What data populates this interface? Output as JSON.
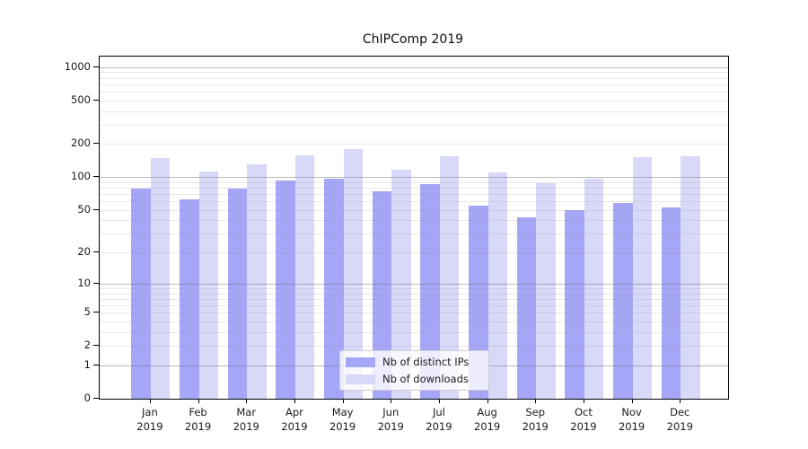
{
  "title": "ChIPComp 2019",
  "chart_data": {
    "type": "bar",
    "title": "ChIPComp 2019",
    "categories": [
      "Jan 2019",
      "Feb 2019",
      "Mar 2019",
      "Apr 2019",
      "May 2019",
      "Jun 2019",
      "Jul 2019",
      "Aug 2019",
      "Sep 2019",
      "Oct 2019",
      "Nov 2019",
      "Dec 2019"
    ],
    "series": [
      {
        "name": "Nb of distinct IPs",
        "color": "#a6a6f8",
        "values": [
          78,
          63,
          78,
          93,
          97,
          74,
          87,
          55,
          43,
          50,
          58,
          53
        ]
      },
      {
        "name": "Nb of downloads",
        "color": "#d8d8f8",
        "values": [
          148,
          113,
          130,
          157,
          180,
          117,
          155,
          110,
          88,
          97,
          153,
          155
        ]
      }
    ],
    "xlabel": "",
    "ylabel": "",
    "y_axis": {
      "scale": "log1p",
      "ticks": [
        0,
        1,
        2,
        5,
        10,
        20,
        50,
        100,
        200,
        500,
        1000
      ],
      "range": [
        0,
        1244
      ]
    },
    "grid": "both",
    "legend_position": "lower center",
    "colors": {
      "major_grid": "rgba(110,110,110,0.48)",
      "minor_grid": "rgba(150,150,150,0.22)",
      "axis": "#000000",
      "text": "#1a1a1a"
    }
  }
}
